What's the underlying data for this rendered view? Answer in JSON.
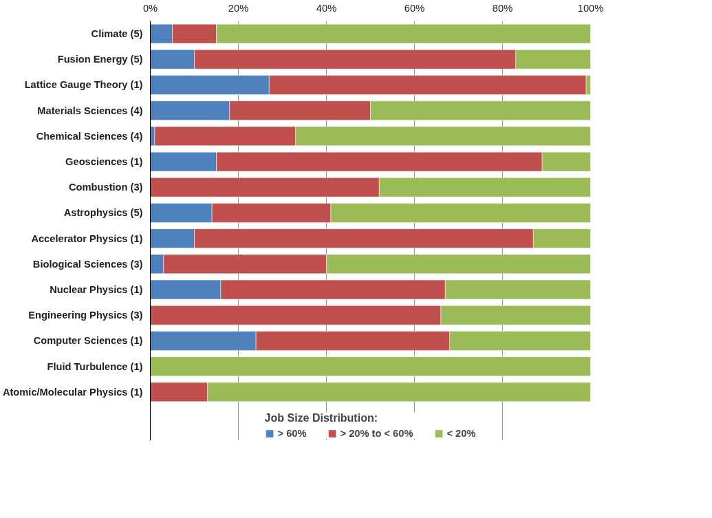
{
  "chart_data": {
    "type": "bar",
    "orientation": "horizontal",
    "stacked": true,
    "categories": [
      "Climate (5)",
      "Fusion Energy (5)",
      "Lattice Gauge Theory (1)",
      "Materials Sciences (4)",
      "Chemical Sciences (4)",
      "Geosciences (1)",
      "Combustion (3)",
      "Astrophysics (5)",
      "Accelerator Physics (1)",
      "Biological Sciences (3)",
      "Nuclear Physics (1)",
      "Engineering Physics (3)",
      "Computer Sciences (1)",
      "Fluid Turbulence (1)",
      "Atomic/Molecular Physics (1)"
    ],
    "series": [
      {
        "name": "> 60%",
        "color": "#4f81bd",
        "values": [
          5,
          10,
          27,
          18,
          1,
          15,
          0,
          14,
          10,
          3,
          16,
          0,
          24,
          0,
          0
        ]
      },
      {
        "name": "> 20% to < 60%",
        "color": "#c0504d",
        "values": [
          10,
          73,
          72,
          32,
          32,
          74,
          52,
          27,
          77,
          37,
          51,
          66,
          44,
          0,
          13
        ]
      },
      {
        "name": "< 20%",
        "color": "#9bbb59",
        "values": [
          85,
          17,
          1,
          50,
          67,
          11,
          48,
          59,
          13,
          60,
          33,
          34,
          32,
          100,
          87
        ]
      }
    ],
    "xlim": [
      0,
      100
    ],
    "xticks": [
      {
        "value": 0,
        "label": "0%"
      },
      {
        "value": 20,
        "label": "20%"
      },
      {
        "value": 40,
        "label": "40%"
      },
      {
        "value": 60,
        "label": "60%"
      },
      {
        "value": 80,
        "label": "80%"
      },
      {
        "value": 100,
        "label": "100%"
      }
    ],
    "grid": "x",
    "legend": "bottom",
    "legend_title": "Job Size Distribution:"
  }
}
